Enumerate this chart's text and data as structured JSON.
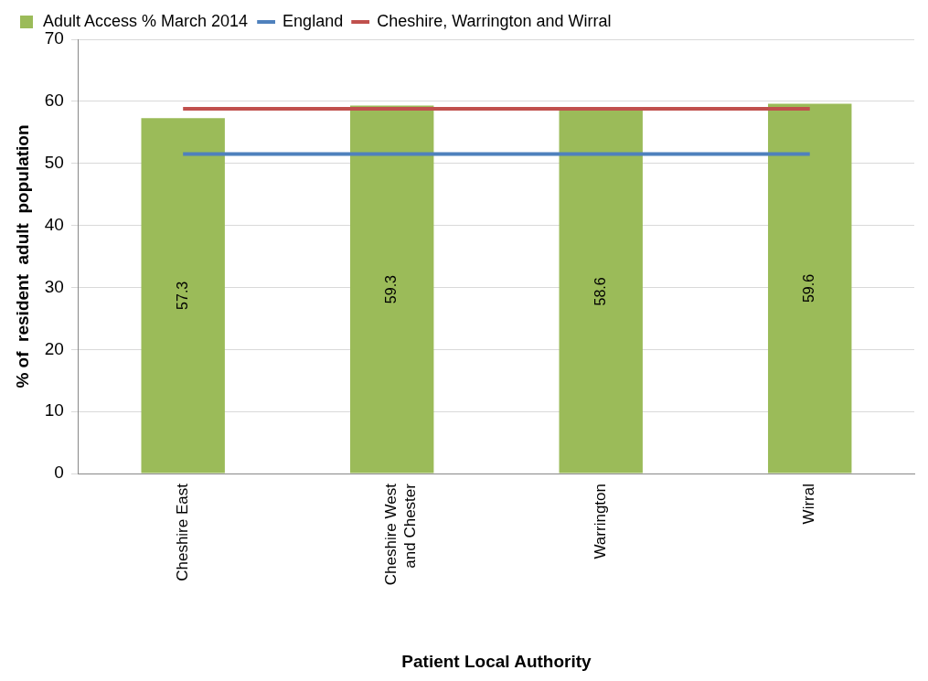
{
  "chart_data": {
    "type": "bar",
    "xlabel": "Patient Local Authority",
    "ylabel": "% of  resident  adult  population",
    "categories": [
      "Cheshire East",
      "Cheshire West and Chester",
      "Warrington",
      "Wirral"
    ],
    "series": [
      {
        "name": "Adult Access % March 2014",
        "color": "#9bbb59",
        "values": [
          57.3,
          59.3,
          58.6,
          59.6
        ],
        "value_labels": [
          "57.3",
          "59.3",
          "58.6",
          "59.6"
        ]
      },
      {
        "name": "England",
        "type": "line",
        "color": "#4f81bd",
        "values": [
          51.5,
          51.5,
          51.5,
          51.5
        ]
      },
      {
        "name": "Cheshire, Warrington and Wirral",
        "type": "line",
        "color": "#c0504d",
        "values": [
          58.8,
          58.8,
          58.8,
          58.8
        ]
      }
    ],
    "ylim": [
      0,
      70
    ],
    "yticks": [
      0,
      10,
      20,
      30,
      40,
      50,
      60,
      70
    ],
    "grid": "y",
    "legend": "top",
    "marker": "none"
  }
}
